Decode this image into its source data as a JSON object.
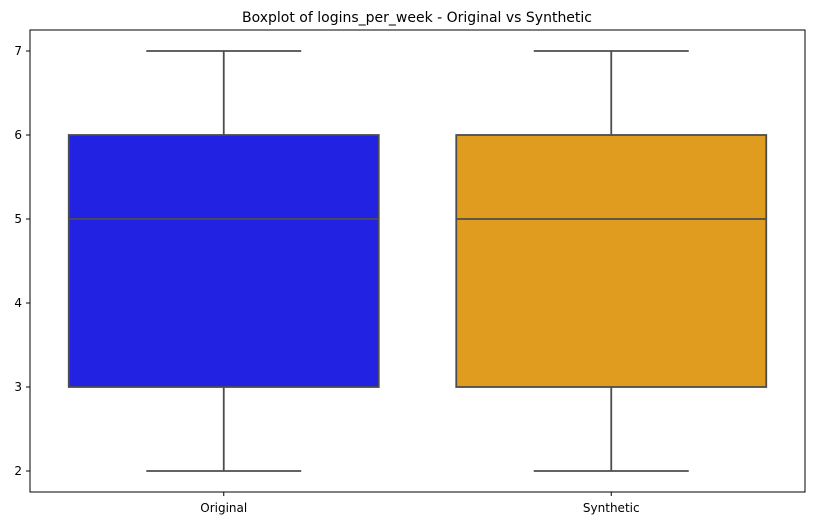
{
  "chart_data": {
    "type": "box",
    "title": "Boxplot of logins_per_week - Original vs Synthetic",
    "xlabel": "",
    "ylabel": "",
    "categories": [
      "Original",
      "Synthetic"
    ],
    "ylim": [
      1.75,
      7.25
    ],
    "yticks": [
      2,
      3,
      4,
      5,
      6,
      7
    ],
    "grid": false,
    "series": [
      {
        "category": "Original",
        "whisker_low": 2,
        "q1": 3,
        "median": 5,
        "q3": 6,
        "whisker_high": 7,
        "color": "#2222e3"
      },
      {
        "category": "Synthetic",
        "whisker_low": 2,
        "q1": 3,
        "median": 5,
        "q3": 6,
        "whisker_high": 7,
        "color": "#e09c1f"
      }
    ],
    "line_color": "#4d4d4d"
  }
}
